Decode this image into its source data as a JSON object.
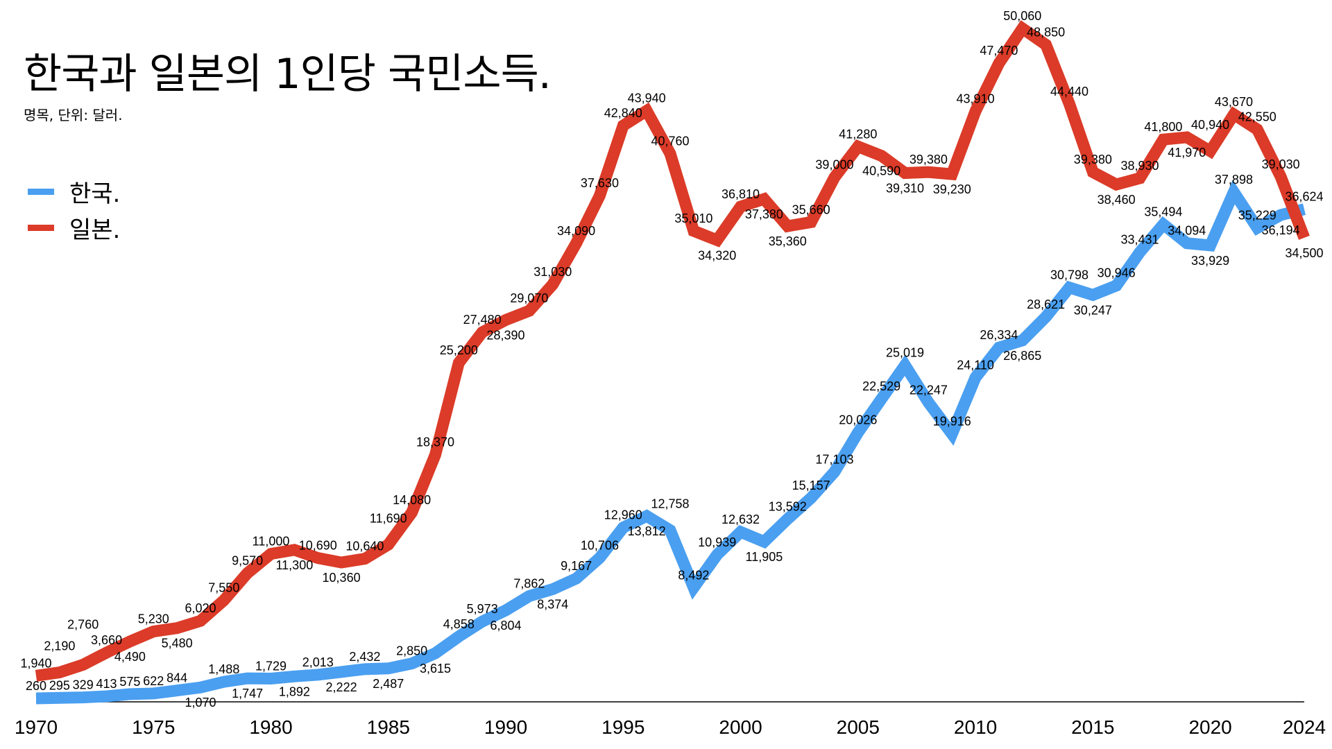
{
  "chart_data": {
    "type": "line",
    "title": "한국과 일본의 1인당 국민소득.",
    "subtitle": "명목, 단위: 달러.",
    "xlabel": "",
    "ylabel": "",
    "x": [
      1970,
      1971,
      1972,
      1973,
      1974,
      1975,
      1976,
      1977,
      1978,
      1979,
      1980,
      1981,
      1982,
      1983,
      1984,
      1985,
      1986,
      1987,
      1988,
      1989,
      1990,
      1991,
      1992,
      1993,
      1994,
      1995,
      1996,
      1997,
      1998,
      1999,
      2000,
      2001,
      2002,
      2003,
      2004,
      2005,
      2006,
      2007,
      2008,
      2009,
      2010,
      2011,
      2012,
      2013,
      2014,
      2015,
      2016,
      2017,
      2018,
      2019,
      2020,
      2021,
      2022,
      2023,
      2024
    ],
    "x_ticks": [
      "1970",
      "1975",
      "1980",
      "1985",
      "1990",
      "1995",
      "2000",
      "2005",
      "2010",
      "2015",
      "2020",
      "2024"
    ],
    "xlim": [
      1970,
      2024
    ],
    "ylim": [
      0,
      50060
    ],
    "grid": false,
    "legend_position": "top-left",
    "series": [
      {
        "name": "한국.",
        "color": "#4a9ff0",
        "values": [
          260,
          295,
          329,
          413,
          575,
          622,
          844,
          1070,
          1488,
          1747,
          1729,
          1892,
          2013,
          2222,
          2432,
          2487,
          2850,
          3615,
          4858,
          5973,
          6804,
          7862,
          8374,
          9167,
          10706,
          12960,
          13812,
          12758,
          8492,
          10939,
          12632,
          11905,
          13592,
          15157,
          17103,
          20026,
          22529,
          25019,
          22247,
          19916,
          24110,
          26334,
          26865,
          28621,
          30798,
          30247,
          30946,
          33431,
          35494,
          34094,
          33929,
          37898,
          35229,
          36194,
          36624
        ]
      },
      {
        "name": "일본.",
        "color": "#db3b28",
        "values": [
          1940,
          2190,
          2760,
          3660,
          4490,
          5230,
          5480,
          6020,
          7550,
          9570,
          11000,
          11300,
          10690,
          10360,
          10640,
          11690,
          14080,
          18370,
          25200,
          27480,
          28390,
          29070,
          31030,
          34090,
          37630,
          42840,
          43940,
          40760,
          35010,
          34320,
          36810,
          37380,
          35360,
          35660,
          39000,
          41280,
          40590,
          39310,
          39380,
          39230,
          43910,
          47470,
          50060,
          48850,
          44440,
          39380,
          38460,
          38930,
          41800,
          41970,
          40940,
          43670,
          42550,
          39030,
          34500
        ]
      }
    ]
  }
}
